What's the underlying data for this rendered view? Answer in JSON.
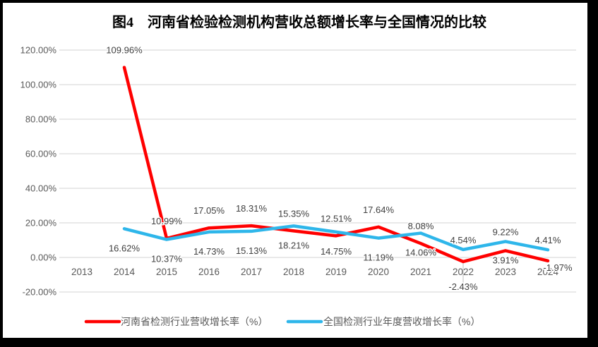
{
  "window": {
    "frame_color": "#000000",
    "canvas_color": "#FFFFFF"
  },
  "chart_data": {
    "type": "line",
    "title": "图4　河南省检验检测机构营收总额增长率与全国情况的比较",
    "categories": [
      "2013",
      "2014",
      "2015",
      "2016",
      "2017",
      "2018",
      "2019",
      "2020",
      "2021",
      "2022",
      "2023",
      "2024"
    ],
    "series": [
      {
        "name": "河南省检测行业营收增长率（%）",
        "color": "#FF0000",
        "values": [
          null,
          109.96,
          10.99,
          17.05,
          18.31,
          15.35,
          12.51,
          17.64,
          8.08,
          -2.43,
          3.91,
          -1.97
        ],
        "label_sides": [
          null,
          "above",
          "above",
          "above",
          "above",
          "above",
          "above",
          "above",
          "above",
          "below",
          "below",
          "below"
        ],
        "data_labels": [
          "109.96%",
          "10.99%",
          "17.05%",
          "18.31%",
          "15.35%",
          "12.51%",
          "17.64%",
          "8.08%",
          "-2.43%",
          "3.91%",
          "-1.97%"
        ]
      },
      {
        "name": "全国检测行业年度营收增长率（%）",
        "color": "#2EB6EA",
        "values": [
          null,
          16.62,
          10.37,
          14.73,
          15.13,
          18.21,
          14.75,
          11.19,
          14.06,
          4.54,
          9.22,
          4.41
        ],
        "label_sides": [
          null,
          "below",
          "below",
          "below",
          "below",
          "below",
          "below",
          "below",
          "below",
          "above",
          "above",
          "above"
        ],
        "data_labels": [
          "16.62%",
          "10.37%",
          "14.73%",
          "15.13%",
          "18.21%",
          "14.75%",
          "11.19%",
          "14.06%",
          "4.54%",
          "9.22%",
          "4.41%"
        ]
      }
    ],
    "ylim": [
      -20,
      120
    ],
    "ytick_step": 20,
    "yticks": [
      "-20.00%",
      "0.00%",
      "20.00%",
      "40.00%",
      "60.00%",
      "80.00%",
      "100.00%",
      "120.00%"
    ],
    "ytick_format": "percent2",
    "grid": true,
    "gridline_color": "#DCDCDC",
    "leader_line_color": "#BFBFBF",
    "data_label_color": "#404040",
    "axis_label_color": "#595959",
    "legend_position": "bottom"
  }
}
